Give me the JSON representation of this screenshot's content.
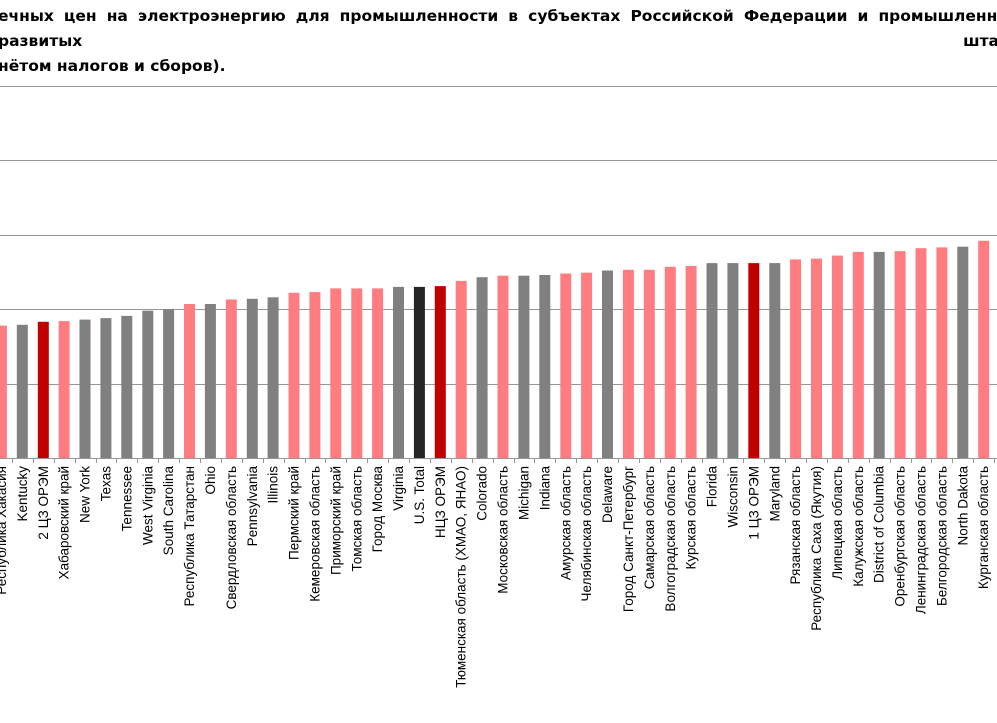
{
  "title_lines": [
    "ечных цен на электроэнергию для промышленности в субъектах Российской Федерации и промышленно развитых штат",
    "нётом налогов и сборов)."
  ],
  "colors": {
    "russia": "#FF7C80",
    "us": "#808080",
    "oreem_zone": "#C00000",
    "us_total": "#262626",
    "grid": "#969696"
  },
  "chart_data": {
    "type": "bar",
    "ylim": [
      0,
      5
    ],
    "gridlines": [
      1,
      2,
      3,
      4,
      5
    ],
    "grid": true,
    "categories": [
      "Республика Хакасия",
      "Kentucky",
      "2 ЦЗ ОРЭМ",
      "Хабаровский край",
      "New York",
      "Texas",
      "Tennessee",
      "West Virginia",
      "South Carolina",
      "Республика Татарстан",
      "Ohio",
      "Свердловская область",
      "Pennsylvania",
      "Illinois",
      "Пермский край",
      "Кемеровская область",
      "Приморский край",
      "Томская область",
      "Город Москва",
      "Virginia",
      "U.S. Total",
      "НЦЗ ОРЭМ",
      "Тюменская область (ХМАО, ЯНАО)",
      "Colorado",
      "Московская область",
      "Michigan",
      "Indiana",
      "Амурская область",
      "Челябинская область",
      "Delaware",
      "Город Санкт-Петербург",
      "Самарская область",
      "Волгоградская область",
      "Курская область",
      "Florida",
      "Wisconsin",
      "1 ЦЗ ОРЭМ",
      "Maryland",
      "Рязанская область",
      "Республика Саха (Якутия)",
      "Липецкая область",
      "Калужская область",
      "District of Columbia",
      "Оренбургская область",
      "Ленинградская область",
      "Белгородская область",
      "North Dakota",
      "Курганская область"
    ],
    "values": [
      1.78,
      1.79,
      1.83,
      1.84,
      1.86,
      1.88,
      1.91,
      1.98,
      2.0,
      2.07,
      2.07,
      2.13,
      2.14,
      2.16,
      2.22,
      2.23,
      2.28,
      2.28,
      2.28,
      2.3,
      2.3,
      2.31,
      2.38,
      2.43,
      2.45,
      2.45,
      2.46,
      2.48,
      2.49,
      2.52,
      2.53,
      2.53,
      2.57,
      2.58,
      2.62,
      2.62,
      2.62,
      2.62,
      2.67,
      2.68,
      2.72,
      2.77,
      2.77,
      2.78,
      2.82,
      2.83,
      2.84,
      2.92
    ],
    "groups": [
      "russia",
      "us",
      "oreem_zone",
      "russia",
      "us",
      "us",
      "us",
      "us",
      "us",
      "russia",
      "us",
      "russia",
      "us",
      "us",
      "russia",
      "russia",
      "russia",
      "russia",
      "russia",
      "us",
      "us_total",
      "oreem_zone",
      "russia",
      "us",
      "russia",
      "us",
      "us",
      "russia",
      "russia",
      "us",
      "russia",
      "russia",
      "russia",
      "russia",
      "us",
      "us",
      "oreem_zone",
      "us",
      "russia",
      "russia",
      "russia",
      "russia",
      "us",
      "russia",
      "russia",
      "russia",
      "us",
      "russia"
    ]
  }
}
